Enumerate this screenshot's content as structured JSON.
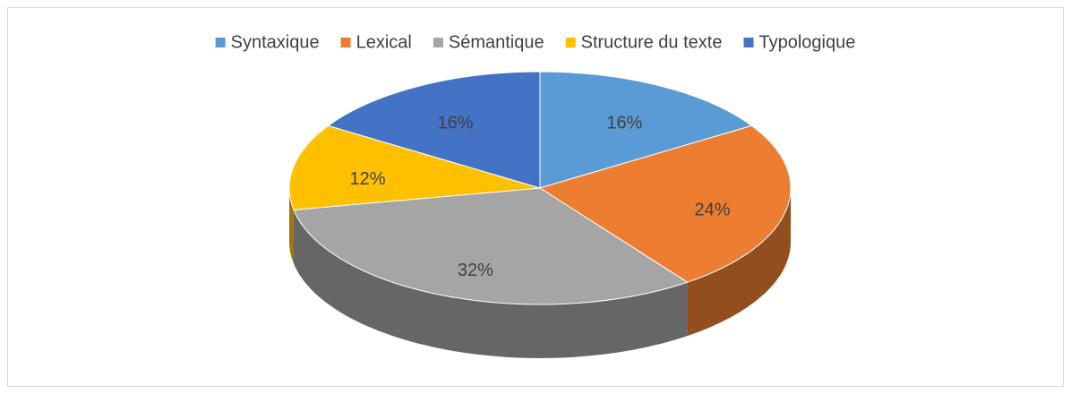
{
  "chart_data": {
    "type": "pie",
    "three_d": true,
    "categories": [
      "Syntaxique",
      "Lexical",
      "Sémantique",
      "Structure du texte",
      "Typologique"
    ],
    "values": [
      16,
      24,
      32,
      12,
      16
    ],
    "value_labels": [
      "16%",
      "24%",
      "32%",
      "12%",
      "16%"
    ],
    "colors": [
      "#5b9bd5",
      "#ed7d31",
      "#a5a5a5",
      "#ffc000",
      "#4472c4"
    ],
    "legend": "top"
  }
}
